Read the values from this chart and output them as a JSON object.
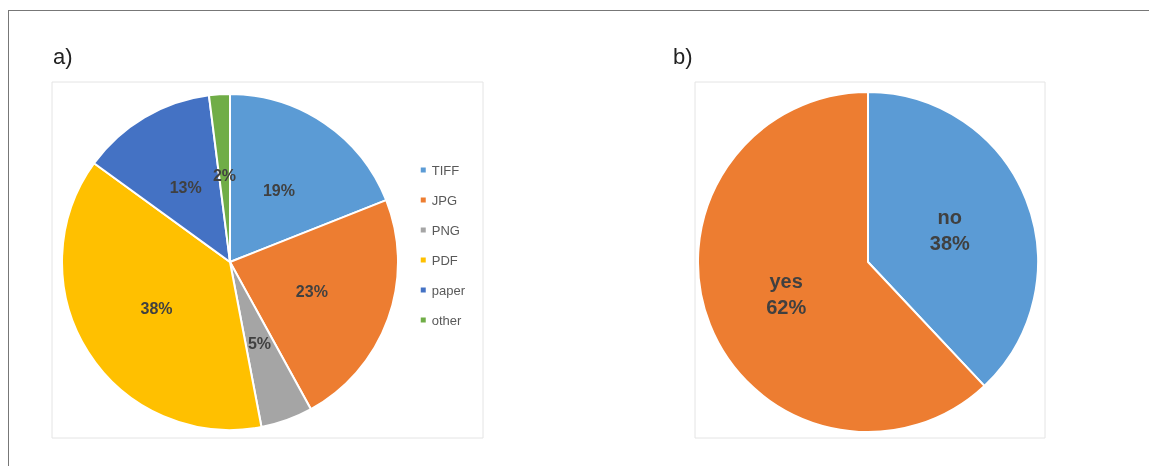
{
  "chart_data": [
    {
      "type": "pie",
      "title": "a)",
      "categories": [
        "TIFF",
        "JPG",
        "PNG",
        "PDF",
        "paper",
        "other"
      ],
      "values": [
        19,
        23,
        5,
        38,
        13,
        2
      ],
      "colors": [
        "#5b9bd5",
        "#ed7d31",
        "#a5a5a5",
        "#ffc000",
        "#4472c4",
        "#70ad47"
      ],
      "value_labels": [
        "19%",
        "23%",
        "5%",
        "38%",
        "13%",
        "2%"
      ],
      "legend": "right"
    },
    {
      "type": "pie",
      "title": "b)",
      "categories": [
        "no",
        "yes"
      ],
      "values": [
        38,
        62
      ],
      "colors": [
        "#5b9bd5",
        "#ed7d31"
      ],
      "value_labels": [
        "38%",
        "62%"
      ]
    }
  ]
}
